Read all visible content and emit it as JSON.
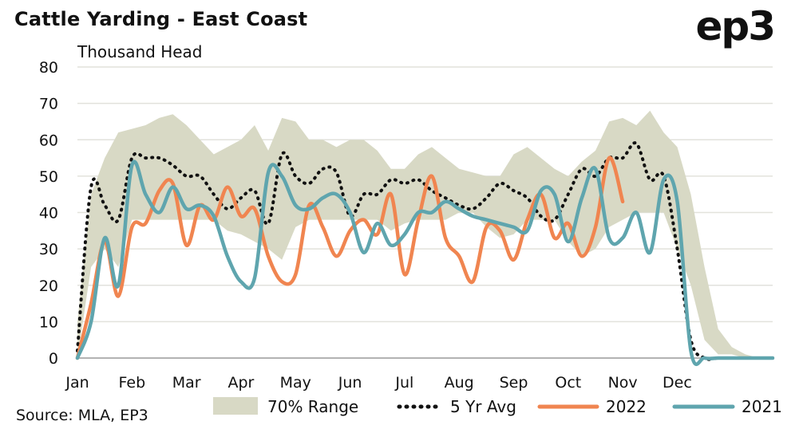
{
  "header": {
    "title": "Cattle Yarding - East Coast",
    "logo": "ep3"
  },
  "footer": {
    "source": "Source: MLA, EP3"
  },
  "colors": {
    "range": "#d8d9c5",
    "avg": "#111111",
    "y2022": "#f08550",
    "y2021": "#5fa5ae",
    "grid": "#e2e2dc"
  },
  "chart_data": {
    "type": "line",
    "title": "Cattle Yarding - East Coast",
    "ylabel": "Thousand Head",
    "ylim": [
      0,
      80
    ],
    "yticks": [
      0,
      10,
      20,
      30,
      40,
      50,
      60,
      70,
      80
    ],
    "xlim": [
      1,
      52
    ],
    "x_tick_labels": [
      "Jan",
      "Feb",
      "Mar",
      "Apr",
      "May",
      "Jun",
      "Jul",
      "Aug",
      "Sep",
      "Oct",
      "Nov",
      "Dec"
    ],
    "x_tick_weeks": [
      1,
      5,
      9,
      13,
      17,
      21,
      25,
      29,
      33,
      37,
      41,
      45
    ],
    "x_unit": "week of year",
    "grid": "horizontal",
    "legend_position": "bottom",
    "series": [
      {
        "name": "70% Range",
        "kind": "band",
        "x": [
          1,
          2,
          3,
          4,
          5,
          6,
          7,
          8,
          9,
          10,
          11,
          12,
          13,
          14,
          15,
          16,
          17,
          18,
          19,
          20,
          21,
          22,
          23,
          24,
          25,
          26,
          27,
          28,
          29,
          30,
          31,
          32,
          33,
          34,
          35,
          36,
          37,
          38,
          39,
          40,
          41,
          42,
          43,
          44,
          45,
          46,
          47,
          48,
          49,
          50,
          51,
          52
        ],
        "low": [
          0,
          25,
          30,
          25,
          38,
          38,
          38,
          38,
          38,
          38,
          38,
          35,
          34,
          32,
          30,
          27,
          36,
          38,
          38,
          38,
          38,
          38,
          38,
          35,
          37,
          38,
          38,
          38,
          40,
          40,
          36,
          33,
          34,
          38,
          38,
          38,
          32,
          28,
          30,
          36,
          38,
          40,
          40,
          40,
          30,
          20,
          5,
          1,
          1,
          0,
          0,
          0
        ],
        "high": [
          10,
          45,
          55,
          62,
          63,
          64,
          66,
          67,
          64,
          60,
          56,
          58,
          60,
          64,
          57,
          66,
          65,
          60,
          60,
          58,
          60,
          60,
          57,
          52,
          52,
          56,
          58,
          55,
          52,
          51,
          50,
          50,
          56,
          58,
          55,
          52,
          50,
          54,
          57,
          65,
          66,
          64,
          68,
          62,
          58,
          45,
          25,
          8,
          3,
          1,
          0,
          0
        ]
      },
      {
        "name": "5 Yr Avg",
        "kind": "dotted",
        "x": [
          1,
          2,
          3,
          4,
          5,
          6,
          7,
          8,
          9,
          10,
          11,
          12,
          13,
          14,
          15,
          16,
          17,
          18,
          19,
          20,
          21,
          22,
          23,
          24,
          25,
          26,
          27,
          28,
          29,
          30,
          31,
          32,
          33,
          34,
          35,
          36,
          37,
          38,
          39,
          40,
          41,
          42,
          43,
          44,
          45,
          46,
          47,
          48,
          49,
          50,
          51,
          52
        ],
        "values": [
          2,
          47,
          42,
          38,
          55,
          55,
          55,
          53,
          50,
          50,
          45,
          41,
          44,
          46,
          37,
          56,
          50,
          48,
          52,
          51,
          39,
          45,
          45,
          49,
          48,
          49,
          46,
          44,
          42,
          41,
          44,
          48,
          46,
          44,
          39,
          38,
          45,
          52,
          50,
          55,
          55,
          59,
          49,
          50,
          30,
          5,
          0,
          0,
          0,
          0,
          0,
          0
        ]
      },
      {
        "name": "2022",
        "kind": "line",
        "x": [
          1,
          2,
          3,
          4,
          5,
          6,
          7,
          8,
          9,
          10,
          11,
          12,
          13,
          14,
          15,
          16,
          17,
          18,
          19,
          20,
          21,
          22,
          23,
          24,
          25,
          26,
          27,
          28,
          29,
          30,
          31,
          32,
          33,
          34,
          35,
          36,
          37,
          38,
          39,
          40,
          41,
          42,
          43
        ],
        "values": [
          0,
          15,
          32,
          17,
          36,
          37,
          46,
          48,
          31,
          42,
          38,
          47,
          39,
          41,
          28,
          21,
          23,
          42,
          36,
          28,
          35,
          38,
          34,
          45,
          23,
          38,
          50,
          33,
          28,
          21,
          36,
          35,
          27,
          38,
          45,
          33,
          37,
          28,
          36,
          55,
          43,
          null,
          null
        ]
      },
      {
        "name": "2021",
        "kind": "line",
        "x": [
          1,
          2,
          3,
          4,
          5,
          6,
          7,
          8,
          9,
          10,
          11,
          12,
          13,
          14,
          15,
          16,
          17,
          18,
          19,
          20,
          21,
          22,
          23,
          24,
          25,
          26,
          27,
          28,
          29,
          30,
          31,
          32,
          33,
          34,
          35,
          36,
          37,
          38,
          39,
          40,
          41,
          42,
          43,
          44,
          45,
          46,
          47,
          48,
          49,
          50,
          51,
          52
        ],
        "values": [
          0,
          10,
          33,
          20,
          53,
          45,
          40,
          47,
          41,
          42,
          39,
          28,
          21,
          22,
          51,
          50,
          42,
          41,
          44,
          45,
          40,
          29,
          37,
          31,
          34,
          40,
          40,
          43,
          41,
          39,
          38,
          37,
          36,
          35,
          46,
          45,
          32,
          44,
          52,
          33,
          33,
          40,
          29,
          49,
          43,
          2,
          0,
          0,
          0,
          0,
          0,
          0
        ]
      }
    ]
  }
}
